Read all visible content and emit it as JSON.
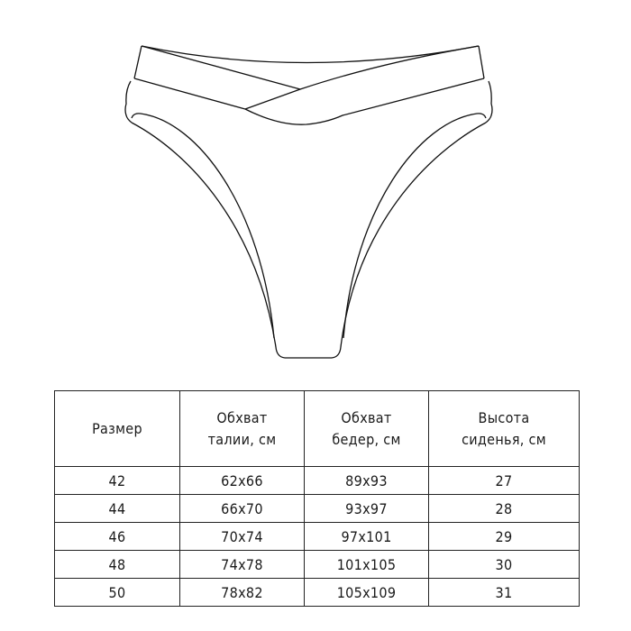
{
  "illustration": {
    "subject": "high-waist-briefs-line-drawing",
    "stroke_color": "#111111"
  },
  "size_table": {
    "headers": [
      {
        "line1": "Размер",
        "line2": ""
      },
      {
        "line1": "Обхват",
        "line2": "талии, см"
      },
      {
        "line1": "Обхват",
        "line2": "бедер, см"
      },
      {
        "line1": "Высота",
        "line2": "сиденья, см"
      }
    ],
    "rows": [
      [
        "42",
        "62x66",
        "89x93",
        "27"
      ],
      [
        "44",
        "66x70",
        "93x97",
        "28"
      ],
      [
        "46",
        "70x74",
        "97x101",
        "29"
      ],
      [
        "48",
        "74x78",
        "101x105",
        "30"
      ],
      [
        "50",
        "78x82",
        "105x109",
        "31"
      ]
    ]
  }
}
